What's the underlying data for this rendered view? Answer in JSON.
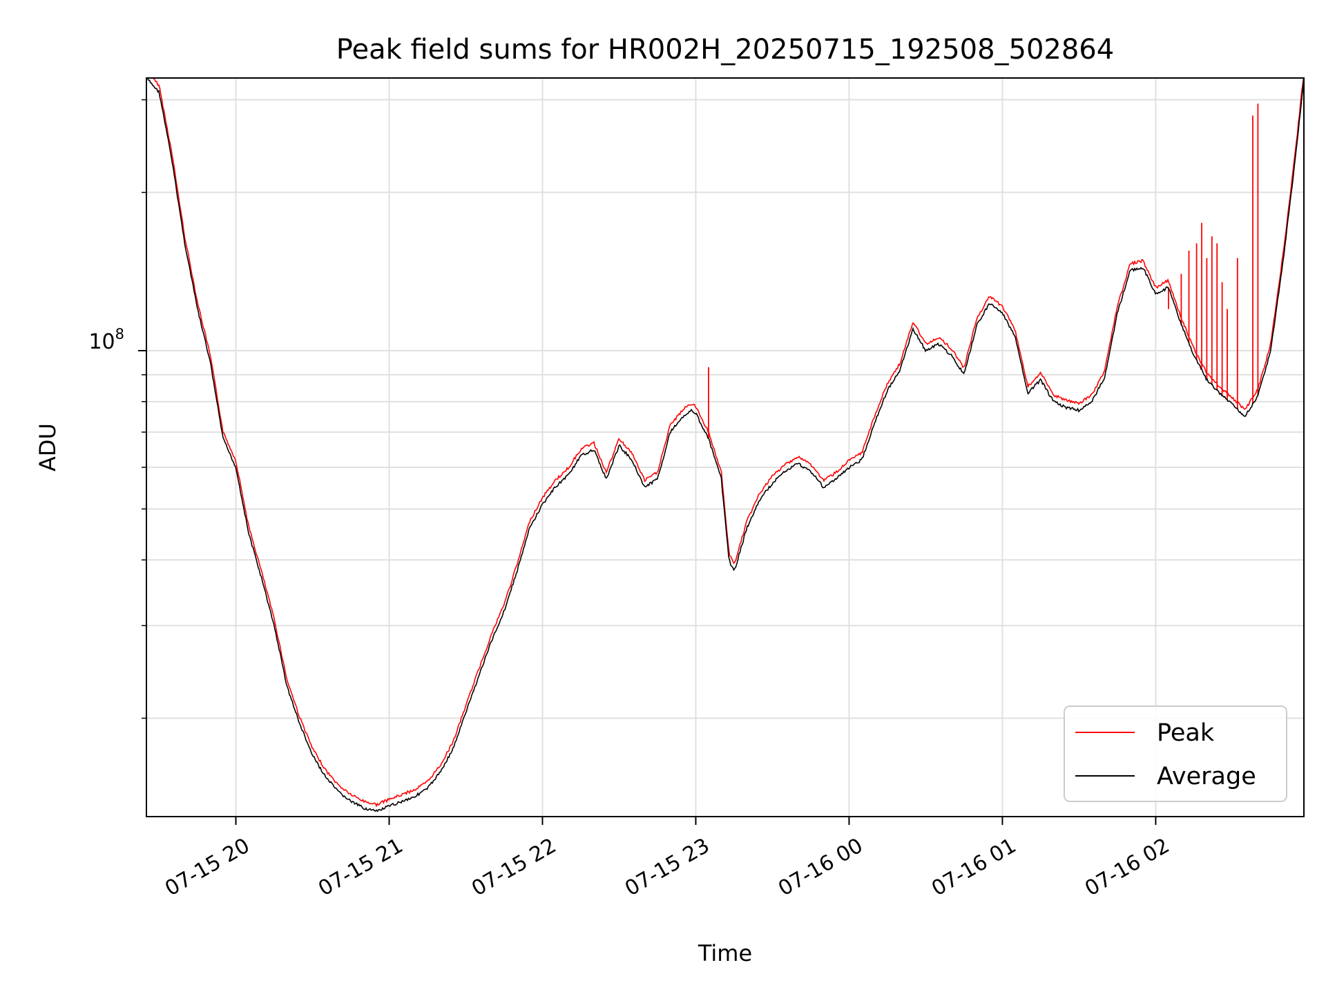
{
  "chart_data": {
    "type": "line",
    "title": "Peak field sums for HR002H_20250715_192508_502864",
    "xlabel": "Time",
    "ylabel": "ADU",
    "y_scale": "log",
    "ylim": [
      13000000,
      330000000
    ],
    "xlim": [
      "2025-07-15 19:25",
      "2025-07-16 02:58"
    ],
    "x_ticks": [
      "2025-07-15 20:00",
      "2025-07-15 21:00",
      "2025-07-15 22:00",
      "2025-07-15 23:00",
      "2025-07-16 00:00",
      "2025-07-16 01:00",
      "2025-07-16 02:00"
    ],
    "x_tick_labels": [
      "07-15 20",
      "07-15 21",
      "07-15 22",
      "07-15 23",
      "07-16 00",
      "07-16 01",
      "07-16 02"
    ],
    "y_tick_label": {
      "base": "10",
      "exponent": "8"
    },
    "grid": true,
    "legend_position": "lower right",
    "legend": [
      "Peak",
      "Average"
    ],
    "colors": {
      "Peak": "#ff0000",
      "Average": "#000000"
    },
    "series": [
      {
        "name": "Average",
        "points": [
          [
            "2025-07-15 19:25",
            330000000
          ],
          [
            "2025-07-15 19:30",
            310000000
          ],
          [
            "2025-07-15 19:35",
            230000000
          ],
          [
            "2025-07-15 19:40",
            160000000
          ],
          [
            "2025-07-15 19:45",
            120000000
          ],
          [
            "2025-07-15 19:50",
            95000000
          ],
          [
            "2025-07-15 19:55",
            68000000
          ],
          [
            "2025-07-15 20:00",
            60000000
          ],
          [
            "2025-07-15 20:05",
            45000000
          ],
          [
            "2025-07-15 20:10",
            37000000
          ],
          [
            "2025-07-15 20:15",
            30000000
          ],
          [
            "2025-07-15 20:20",
            23000000
          ],
          [
            "2025-07-15 20:25",
            19500000
          ],
          [
            "2025-07-15 20:30",
            17000000
          ],
          [
            "2025-07-15 20:35",
            15500000
          ],
          [
            "2025-07-15 20:40",
            14500000
          ],
          [
            "2025-07-15 20:45",
            13900000
          ],
          [
            "2025-07-15 20:50",
            13500000
          ],
          [
            "2025-07-15 20:55",
            13300000
          ],
          [
            "2025-07-15 21:00",
            13600000
          ],
          [
            "2025-07-15 21:05",
            13900000
          ],
          [
            "2025-07-15 21:10",
            14200000
          ],
          [
            "2025-07-15 21:15",
            14700000
          ],
          [
            "2025-07-15 21:20",
            15800000
          ],
          [
            "2025-07-15 21:25",
            17500000
          ],
          [
            "2025-07-15 21:30",
            20500000
          ],
          [
            "2025-07-15 21:35",
            24000000
          ],
          [
            "2025-07-15 21:40",
            28000000
          ],
          [
            "2025-07-15 21:45",
            32000000
          ],
          [
            "2025-07-15 21:50",
            38000000
          ],
          [
            "2025-07-15 21:55",
            46000000
          ],
          [
            "2025-07-15 22:00",
            51000000
          ],
          [
            "2025-07-15 22:05",
            55000000
          ],
          [
            "2025-07-15 22:10",
            58000000
          ],
          [
            "2025-07-15 22:15",
            63000000
          ],
          [
            "2025-07-15 22:20",
            65000000
          ],
          [
            "2025-07-15 22:25",
            57000000
          ],
          [
            "2025-07-15 22:30",
            66000000
          ],
          [
            "2025-07-15 22:35",
            62000000
          ],
          [
            "2025-07-15 22:40",
            55000000
          ],
          [
            "2025-07-15 22:45",
            57000000
          ],
          [
            "2025-07-15 22:50",
            70000000
          ],
          [
            "2025-07-15 22:55",
            75000000
          ],
          [
            "2025-07-15 22:58",
            77000000
          ],
          [
            "2025-07-15 23:00",
            76000000
          ],
          [
            "2025-07-15 23:05",
            68000000
          ],
          [
            "2025-07-15 23:10",
            57000000
          ],
          [
            "2025-07-15 23:13",
            40000000
          ],
          [
            "2025-07-15 23:15",
            38000000
          ],
          [
            "2025-07-15 23:20",
            46000000
          ],
          [
            "2025-07-15 23:25",
            52000000
          ],
          [
            "2025-07-15 23:30",
            56000000
          ],
          [
            "2025-07-15 23:35",
            59000000
          ],
          [
            "2025-07-15 23:40",
            61000000
          ],
          [
            "2025-07-15 23:45",
            59000000
          ],
          [
            "2025-07-15 23:50",
            55000000
          ],
          [
            "2025-07-15 23:55",
            57000000
          ],
          [
            "2025-07-16 00:00",
            60000000
          ],
          [
            "2025-07-16 00:05",
            62000000
          ],
          [
            "2025-07-16 00:10",
            73000000
          ],
          [
            "2025-07-16 00:15",
            84000000
          ],
          [
            "2025-07-16 00:20",
            92000000
          ],
          [
            "2025-07-16 00:25",
            110000000
          ],
          [
            "2025-07-16 00:30",
            100000000
          ],
          [
            "2025-07-16 00:35",
            103000000
          ],
          [
            "2025-07-16 00:40",
            98000000
          ],
          [
            "2025-07-16 00:45",
            90000000
          ],
          [
            "2025-07-16 00:50",
            112000000
          ],
          [
            "2025-07-16 00:55",
            123000000
          ],
          [
            "2025-07-16 01:00",
            118000000
          ],
          [
            "2025-07-16 01:05",
            106000000
          ],
          [
            "2025-07-16 01:10",
            83000000
          ],
          [
            "2025-07-16 01:15",
            88000000
          ],
          [
            "2025-07-16 01:20",
            80000000
          ],
          [
            "2025-07-16 01:25",
            78000000
          ],
          [
            "2025-07-16 01:30",
            77000000
          ],
          [
            "2025-07-16 01:35",
            80000000
          ],
          [
            "2025-07-16 01:40",
            89000000
          ],
          [
            "2025-07-16 01:45",
            118000000
          ],
          [
            "2025-07-16 01:50",
            142000000
          ],
          [
            "2025-07-16 01:55",
            144000000
          ],
          [
            "2025-07-16 02:00",
            128000000
          ],
          [
            "2025-07-16 02:05",
            132000000
          ],
          [
            "2025-07-16 02:10",
            112000000
          ],
          [
            "2025-07-16 02:15",
            98000000
          ],
          [
            "2025-07-16 02:20",
            88000000
          ],
          [
            "2025-07-16 02:25",
            83000000
          ],
          [
            "2025-07-16 02:30",
            79000000
          ],
          [
            "2025-07-16 02:35",
            75000000
          ],
          [
            "2025-07-16 02:40",
            82000000
          ],
          [
            "2025-07-16 02:45",
            100000000
          ],
          [
            "2025-07-16 02:50",
            150000000
          ],
          [
            "2025-07-16 02:55",
            240000000
          ],
          [
            "2025-07-16 02:58",
            330000000
          ]
        ]
      },
      {
        "name": "Peak",
        "offset_from_average": 1.03,
        "spikes": [
          [
            "2025-07-15 23:05",
            93000000
          ],
          [
            "2025-07-16 02:05",
            120000000
          ],
          [
            "2025-07-16 02:10",
            140000000
          ],
          [
            "2025-07-16 02:13",
            155000000
          ],
          [
            "2025-07-16 02:16",
            160000000
          ],
          [
            "2025-07-16 02:18",
            175000000
          ],
          [
            "2025-07-16 02:20",
            150000000
          ],
          [
            "2025-07-16 02:22",
            165000000
          ],
          [
            "2025-07-16 02:24",
            160000000
          ],
          [
            "2025-07-16 02:26",
            135000000
          ],
          [
            "2025-07-16 02:28",
            120000000
          ],
          [
            "2025-07-16 02:32",
            150000000
          ],
          [
            "2025-07-16 02:38",
            280000000
          ],
          [
            "2025-07-16 02:40",
            295000000
          ]
        ]
      }
    ]
  }
}
